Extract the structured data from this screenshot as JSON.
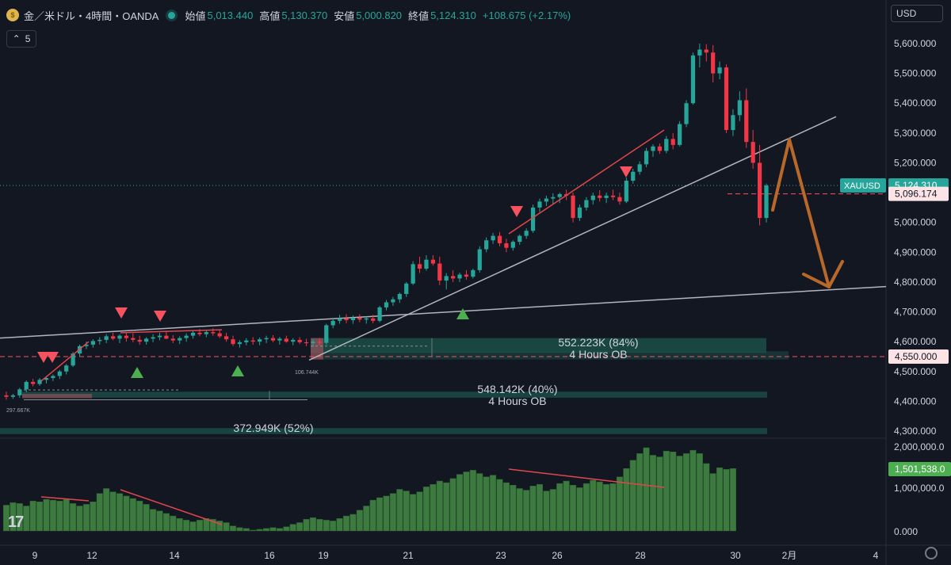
{
  "header": {
    "symbol": "金／米ドル・4時間・OANDA",
    "open_label": "始値",
    "open": "5,013.440",
    "high_label": "高値",
    "high": "5,130.370",
    "low_label": "安値",
    "low": "5,000.820",
    "close_label": "終値",
    "close": "5,124.310",
    "change": "+108.675 (+2.17%)",
    "collapse_count": "5",
    "currency": "USD"
  },
  "chart_data": {
    "type": "candlestick",
    "y_axis": {
      "ticks": [
        "5,600.000",
        "5,500.000",
        "5,400.000",
        "5,300.000",
        "5,200.000",
        "5,100.000",
        "5,000.000",
        "4,900.000",
        "4,800.000",
        "4,700.000",
        "4,600.000",
        "4,500.000",
        "4,400.000",
        "4,300.000"
      ],
      "range": [
        4280,
        5650
      ]
    },
    "x_axis": {
      "ticks": [
        "9",
        "12",
        "14",
        "16",
        "19",
        "21",
        "23",
        "26",
        "28",
        "30",
        "2月",
        "4"
      ]
    },
    "price_labels": [
      {
        "text": "XAUUSD",
        "value": "5,124.310",
        "color": "#26a69a"
      },
      {
        "text": "",
        "value": "5,096.174",
        "color": "#f7525f"
      },
      {
        "text": "",
        "value": "4,550.000",
        "color": "#f7525f"
      }
    ],
    "zone_labels": [
      {
        "text": "552.223K (84%)",
        "sub": "4 Hours OB"
      },
      {
        "text": "548.142K (40%)",
        "sub": "4 Hours OB"
      },
      {
        "text": "372.949K (52%)",
        "sub": ""
      }
    ],
    "small_labels": [
      "106.744K",
      "297.667K"
    ],
    "volume_axis": {
      "ticks": [
        "2,000,000.0",
        "1,000,000.0",
        "0.000"
      ],
      "current": "1,501,538.0"
    },
    "candles": [
      [
        4420,
        4432,
        4405,
        4415
      ],
      [
        4415,
        4425,
        4408,
        4420
      ],
      [
        4420,
        4445,
        4412,
        4440
      ],
      [
        4440,
        4470,
        4430,
        4465
      ],
      [
        4465,
        4475,
        4450,
        4458
      ],
      [
        4458,
        4478,
        4452,
        4472
      ],
      [
        4472,
        4485,
        4460,
        4478
      ],
      [
        4478,
        4490,
        4468,
        4485
      ],
      [
        4485,
        4505,
        4475,
        4500
      ],
      [
        4500,
        4525,
        4490,
        4520
      ],
      [
        4520,
        4565,
        4515,
        4560
      ],
      [
        4560,
        4590,
        4550,
        4585
      ],
      [
        4585,
        4600,
        4575,
        4590
      ],
      [
        4590,
        4608,
        4580,
        4602
      ],
      [
        4602,
        4615,
        4590,
        4606
      ],
      [
        4606,
        4625,
        4595,
        4618
      ],
      [
        4618,
        4630,
        4605,
        4610
      ],
      [
        4610,
        4625,
        4595,
        4620
      ],
      [
        4620,
        4632,
        4600,
        4612
      ],
      [
        4612,
        4628,
        4598,
        4606
      ],
      [
        4606,
        4620,
        4590,
        4600
      ],
      [
        4600,
        4615,
        4590,
        4610
      ],
      [
        4610,
        4625,
        4598,
        4615
      ],
      [
        4615,
        4630,
        4605,
        4620
      ],
      [
        4620,
        4635,
        4608,
        4610
      ],
      [
        4610,
        4622,
        4595,
        4604
      ],
      [
        4604,
        4618,
        4592,
        4612
      ],
      [
        4612,
        4628,
        4600,
        4620
      ],
      [
        4620,
        4638,
        4610,
        4630
      ],
      [
        4630,
        4642,
        4618,
        4625
      ],
      [
        4625,
        4640,
        4615,
        4632
      ],
      [
        4632,
        4645,
        4620,
        4628
      ],
      [
        4628,
        4640,
        4612,
        4618
      ],
      [
        4618,
        4630,
        4600,
        4608
      ],
      [
        4608,
        4620,
        4585,
        4592
      ],
      [
        4592,
        4605,
        4580,
        4598
      ],
      [
        4598,
        4612,
        4588,
        4604
      ],
      [
        4604,
        4615,
        4590,
        4600
      ],
      [
        4600,
        4614,
        4588,
        4608
      ],
      [
        4608,
        4620,
        4595,
        4612
      ],
      [
        4612,
        4622,
        4598,
        4604
      ],
      [
        4604,
        4616,
        4590,
        4610
      ],
      [
        4610,
        4620,
        4596,
        4600
      ],
      [
        4600,
        4612,
        4588,
        4606
      ],
      [
        4606,
        4615,
        4592,
        4598
      ],
      [
        4598,
        4610,
        4585,
        4595
      ],
      [
        4595,
        4608,
        4582,
        4600
      ],
      [
        4600,
        4612,
        4588,
        4596
      ],
      [
        4596,
        4660,
        4590,
        4655
      ],
      [
        4655,
        4680,
        4645,
        4670
      ],
      [
        4670,
        4690,
        4660,
        4678
      ],
      [
        4678,
        4692,
        4662,
        4672
      ],
      [
        4672,
        4688,
        4660,
        4680
      ],
      [
        4680,
        4692,
        4665,
        4674
      ],
      [
        4674,
        4686,
        4660,
        4678
      ],
      [
        4678,
        4690,
        4662,
        4670
      ],
      [
        4670,
        4720,
        4665,
        4715
      ],
      [
        4715,
        4740,
        4705,
        4732
      ],
      [
        4732,
        4750,
        4720,
        4742
      ],
      [
        4742,
        4765,
        4730,
        4760
      ],
      [
        4760,
        4800,
        4750,
        4795
      ],
      [
        4795,
        4870,
        4790,
        4860
      ],
      [
        4860,
        4885,
        4830,
        4845
      ],
      [
        4845,
        4890,
        4838,
        4875
      ],
      [
        4875,
        4890,
        4855,
        4862
      ],
      [
        4862,
        4885,
        4790,
        4805
      ],
      [
        4805,
        4830,
        4775,
        4820
      ],
      [
        4820,
        4840,
        4800,
        4812
      ],
      [
        4812,
        4832,
        4800,
        4825
      ],
      [
        4825,
        4840,
        4808,
        4818
      ],
      [
        4818,
        4845,
        4812,
        4840
      ],
      [
        4840,
        4920,
        4832,
        4910
      ],
      [
        4910,
        4950,
        4900,
        4940
      ],
      [
        4940,
        4965,
        4928,
        4955
      ],
      [
        4955,
        4968,
        4920,
        4930
      ],
      [
        4930,
        4945,
        4900,
        4915
      ],
      [
        4915,
        4940,
        4905,
        4935
      ],
      [
        4935,
        4960,
        4925,
        4955
      ],
      [
        4955,
        4980,
        4945,
        4972
      ],
      [
        4972,
        5060,
        4965,
        5050
      ],
      [
        5050,
        5080,
        5035,
        5070
      ],
      [
        5070,
        5090,
        5055,
        5080
      ],
      [
        5080,
        5098,
        5060,
        5085
      ],
      [
        5085,
        5100,
        5065,
        5095
      ],
      [
        5095,
        5110,
        5075,
        5090
      ],
      [
        5090,
        5100,
        5000,
        5015
      ],
      [
        5015,
        5060,
        5005,
        5050
      ],
      [
        5050,
        5085,
        5040,
        5075
      ],
      [
        5075,
        5100,
        5060,
        5090
      ],
      [
        5090,
        5108,
        5070,
        5082
      ],
      [
        5082,
        5100,
        5065,
        5090
      ],
      [
        5090,
        5110,
        5075,
        5085
      ],
      [
        5085,
        5100,
        5060,
        5070
      ],
      [
        5070,
        5150,
        5065,
        5140
      ],
      [
        5140,
        5180,
        5130,
        5170
      ],
      [
        5170,
        5205,
        5160,
        5195
      ],
      [
        5195,
        5250,
        5185,
        5240
      ],
      [
        5240,
        5262,
        5220,
        5255
      ],
      [
        5255,
        5265,
        5230,
        5240
      ],
      [
        5240,
        5290,
        5232,
        5280
      ],
      [
        5280,
        5300,
        5245,
        5260
      ],
      [
        5260,
        5340,
        5255,
        5330
      ],
      [
        5330,
        5410,
        5320,
        5400
      ],
      [
        5400,
        5570,
        5395,
        5560
      ],
      [
        5560,
        5600,
        5520,
        5580
      ],
      [
        5580,
        5598,
        5540,
        5570
      ],
      [
        5570,
        5595,
        5470,
        5500
      ],
      [
        5500,
        5540,
        5480,
        5520
      ],
      [
        5520,
        5530,
        5300,
        5310
      ],
      [
        5310,
        5380,
        5290,
        5360
      ],
      [
        5360,
        5440,
        5340,
        5410
      ],
      [
        5410,
        5450,
        5250,
        5270
      ],
      [
        5270,
        5310,
        5180,
        5200
      ],
      [
        5200,
        5260,
        4990,
        5015
      ],
      [
        5015,
        5130,
        5000,
        5124
      ]
    ],
    "volume": [
      0.62,
      0.68,
      0.66,
      0.6,
      0.72,
      0.7,
      0.76,
      0.74,
      0.72,
      0.76,
      0.66,
      0.6,
      0.64,
      0.7,
      0.9,
      1.02,
      0.94,
      0.9,
      0.84,
      0.78,
      0.72,
      0.64,
      0.52,
      0.48,
      0.42,
      0.36,
      0.3,
      0.26,
      0.22,
      0.26,
      0.3,
      0.28,
      0.24,
      0.2,
      0.12,
      0.08,
      0.06,
      0.02,
      0.04,
      0.06,
      0.08,
      0.06,
      0.1,
      0.16,
      0.2,
      0.28,
      0.32,
      0.28,
      0.26,
      0.24,
      0.3,
      0.36,
      0.4,
      0.5,
      0.6,
      0.74,
      0.8,
      0.84,
      0.9,
      1.0,
      0.96,
      0.88,
      0.94,
      1.06,
      1.12,
      1.2,
      1.16,
      1.26,
      1.36,
      1.42,
      1.46,
      1.38,
      1.3,
      1.34,
      1.24,
      1.16,
      1.1,
      1.02,
      0.98,
      1.08,
      1.12,
      0.96,
      1.0,
      1.14,
      1.2,
      1.1,
      1.04,
      1.14,
      1.22,
      1.18,
      1.12,
      1.14,
      1.3,
      1.5,
      1.7,
      1.86,
      2.0,
      1.82,
      1.78,
      1.92,
      1.9,
      1.8,
      1.86,
      1.94,
      1.86,
      1.62,
      1.38,
      1.52,
      1.48,
      1.5
    ]
  }
}
